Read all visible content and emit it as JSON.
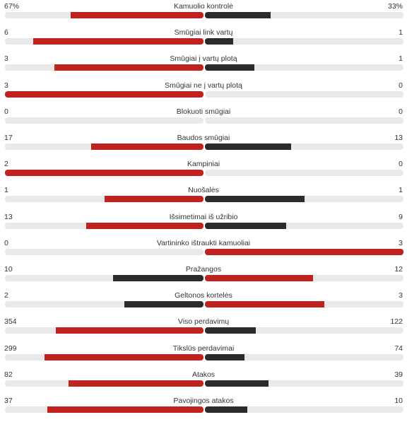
{
  "colors": {
    "win": "#c0221f",
    "lose": "#2b2b2b",
    "track": "#e9e9e9"
  },
  "stats": [
    {
      "label": "Kamuolio kontrolė",
      "home": "67%",
      "away": "33%",
      "home_share": 0.67,
      "away_share": 0.33
    },
    {
      "label": "Smūgiai link vartų",
      "home": "6",
      "away": "1",
      "home_share": 0.857,
      "away_share": 0.143
    },
    {
      "label": "Smūgiai į vartų plotą",
      "home": "3",
      "away": "1",
      "home_share": 0.75,
      "away_share": 0.25
    },
    {
      "label": "Smūgiai ne į vartų plotą",
      "home": "3",
      "away": "0",
      "home_share": 1.0,
      "away_share": 0.0
    },
    {
      "label": "Blokuoti smūgiai",
      "home": "0",
      "away": "0",
      "home_share": 0.0,
      "away_share": 0.0
    },
    {
      "label": "Baudos smūgiai",
      "home": "17",
      "away": "13",
      "home_share": 0.567,
      "away_share": 0.433
    },
    {
      "label": "Kampiniai",
      "home": "2",
      "away": "0",
      "home_share": 1.0,
      "away_share": 0.0
    },
    {
      "label": "Nuošalės",
      "home": "1",
      "away": "1",
      "home_share": 0.5,
      "away_share": 0.5
    },
    {
      "label": "Išsimetimai iš užribio",
      "home": "13",
      "away": "9",
      "home_share": 0.591,
      "away_share": 0.409
    },
    {
      "label": "Vartininko ištraukti kamuoliai",
      "home": "0",
      "away": "3",
      "home_share": 0.0,
      "away_share": 1.0
    },
    {
      "label": "Pražangos",
      "home": "10",
      "away": "12",
      "home_share": 0.455,
      "away_share": 0.545
    },
    {
      "label": "Geltonos kortelės",
      "home": "2",
      "away": "3",
      "home_share": 0.4,
      "away_share": 0.6
    },
    {
      "label": "Viso perdavimų",
      "home": "354",
      "away": "122",
      "home_share": 0.744,
      "away_share": 0.256
    },
    {
      "label": "Tikslūs perdavimai",
      "home": "299",
      "away": "74",
      "home_share": 0.802,
      "away_share": 0.198
    },
    {
      "label": "Atakos",
      "home": "82",
      "away": "39",
      "home_share": 0.678,
      "away_share": 0.322
    },
    {
      "label": "Pavojingos atakos",
      "home": "37",
      "away": "10",
      "home_share": 0.787,
      "away_share": 0.213
    }
  ]
}
